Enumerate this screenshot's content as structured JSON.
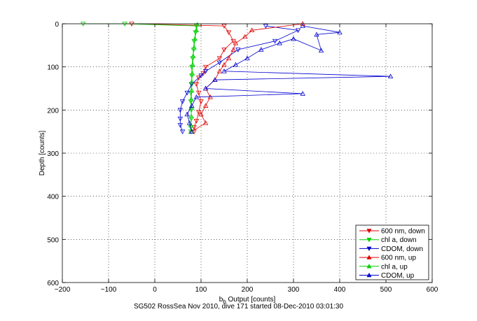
{
  "chart_data": {
    "type": "scatter",
    "xlabel": "b_b Output [counts]",
    "ylabel": "Depth [counts]",
    "caption": "SG502 RossSea Nov 2010, dive 171 started 08-Dec-2010 03:01:30",
    "xlim": [
      -200,
      600
    ],
    "ylim": [
      600,
      0
    ],
    "y_reversed": true,
    "grid": true,
    "legend_placement": "bottom-right",
    "x_ticks": [
      -200,
      -100,
      0,
      100,
      200,
      300,
      400,
      500,
      600
    ],
    "y_ticks": [
      0,
      100,
      200,
      300,
      400,
      500,
      600
    ],
    "series": [
      {
        "name": "600 nm, down",
        "color": "#e00000",
        "marker": "triangle-down",
        "points": [
          [
            -50,
            0
          ],
          [
            150,
            5
          ],
          [
            160,
            20
          ],
          [
            170,
            40
          ],
          [
            150,
            60
          ],
          [
            140,
            80
          ],
          [
            110,
            100
          ],
          [
            105,
            115
          ],
          [
            95,
            125
          ],
          [
            90,
            140
          ],
          [
            95,
            160
          ],
          [
            100,
            180
          ],
          [
            95,
            205
          ],
          [
            90,
            225
          ],
          [
            85,
            240
          ],
          [
            85,
            250
          ]
        ]
      },
      {
        "name": "chl a, down",
        "color": "#00d000",
        "marker": "triangle-down",
        "points": [
          [
            -155,
            0
          ],
          [
            -65,
            0
          ],
          [
            90,
            5
          ],
          [
            88,
            20
          ],
          [
            85,
            40
          ],
          [
            84,
            60
          ],
          [
            82,
            80
          ],
          [
            80,
            100
          ],
          [
            80,
            120
          ],
          [
            79,
            140
          ],
          [
            78,
            160
          ],
          [
            78,
            180
          ],
          [
            79,
            200
          ],
          [
            79,
            220
          ],
          [
            78,
            240
          ],
          [
            78,
            250
          ]
        ]
      },
      {
        "name": "CDOM, down",
        "color": "#0000d0",
        "marker": "triangle-down",
        "points": [
          [
            240,
            5
          ],
          [
            310,
            15
          ],
          [
            260,
            40
          ],
          [
            180,
            60
          ],
          [
            140,
            90
          ],
          [
            110,
            110
          ],
          [
            100,
            120
          ],
          [
            80,
            140
          ],
          [
            70,
            160
          ],
          [
            60,
            180
          ],
          [
            55,
            200
          ],
          [
            55,
            220
          ],
          [
            55,
            235
          ],
          [
            60,
            250
          ]
        ]
      },
      {
        "name": "600 nm, up",
        "color": "#e00000",
        "marker": "triangle-up",
        "points": [
          [
            80,
            250
          ],
          [
            110,
            230
          ],
          [
            100,
            210
          ],
          [
            110,
            190
          ],
          [
            120,
            170
          ],
          [
            110,
            150
          ],
          [
            130,
            130
          ],
          [
            140,
            110
          ],
          [
            150,
            95
          ],
          [
            160,
            80
          ],
          [
            170,
            60
          ],
          [
            175,
            45
          ],
          [
            195,
            30
          ],
          [
            210,
            15
          ],
          [
            320,
            0
          ]
        ]
      },
      {
        "name": "chl a, up",
        "color": "#00d000",
        "marker": "triangle-up",
        "points": [
          [
            78,
            250
          ],
          [
            78,
            235
          ],
          [
            79,
            215
          ],
          [
            79,
            195
          ],
          [
            79,
            175
          ],
          [
            80,
            155
          ],
          [
            80,
            135
          ],
          [
            81,
            115
          ],
          [
            82,
            95
          ],
          [
            83,
            75
          ],
          [
            85,
            55
          ],
          [
            87,
            35
          ],
          [
            90,
            15
          ],
          [
            92,
            2
          ]
        ]
      },
      {
        "name": "CDOM, up",
        "color": "#0000d0",
        "marker": "triangle-up",
        "points": [
          [
            80,
            250
          ],
          [
            75,
            230
          ],
          [
            70,
            210
          ],
          [
            80,
            190
          ],
          [
            90,
            170
          ],
          [
            320,
            162
          ],
          [
            110,
            150
          ],
          [
            130,
            130
          ],
          [
            510,
            122
          ],
          [
            150,
            110
          ],
          [
            175,
            95
          ],
          [
            200,
            80
          ],
          [
            230,
            60
          ],
          [
            270,
            45
          ],
          [
            300,
            35
          ],
          [
            360,
            62
          ],
          [
            350,
            25
          ],
          [
            400,
            20
          ],
          [
            320,
            5
          ]
        ]
      }
    ]
  }
}
